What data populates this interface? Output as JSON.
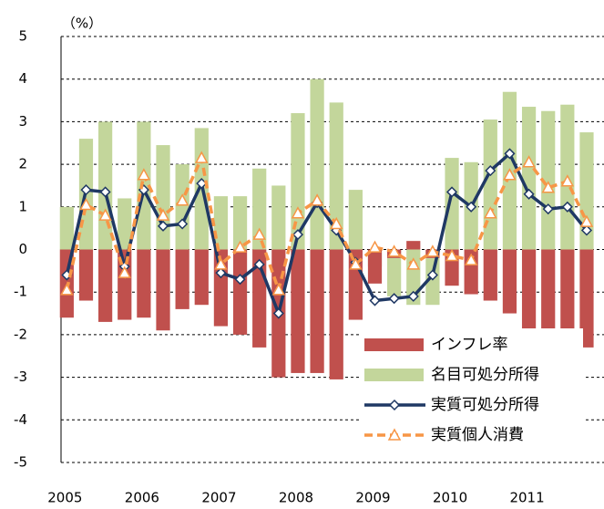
{
  "chart_data": {
    "type": "bar",
    "y_label": "（%）",
    "categories": [
      "2005",
      null,
      null,
      null,
      "2006",
      null,
      null,
      null,
      "2007",
      null,
      null,
      null,
      "2008",
      null,
      null,
      null,
      "2009",
      null,
      null,
      null,
      "2010",
      null,
      null,
      null,
      "2011",
      null,
      null,
      null
    ],
    "series": [
      {
        "name": "名目可処分所得",
        "type": "bar",
        "color": "#c3d69b",
        "values": [
          1.0,
          2.6,
          3.0,
          1.2,
          3.0,
          2.45,
          2.0,
          2.85,
          1.25,
          1.25,
          1.9,
          1.5,
          3.2,
          4.0,
          3.45,
          1.4,
          -0.4,
          -1.1,
          -1.3,
          -1.3,
          2.15,
          2.05,
          3.05,
          3.7,
          3.35,
          3.25,
          3.4,
          2.75
        ]
      },
      {
        "name": "インフレ率",
        "type": "bar",
        "color": "#c0504d",
        "values": [
          -1.6,
          -1.2,
          -1.7,
          -1.65,
          -1.6,
          -1.9,
          -1.4,
          -1.3,
          -1.8,
          -2.0,
          -2.3,
          -3.0,
          -2.9,
          -2.9,
          -3.05,
          -1.65,
          -0.8,
          -0.2,
          0.2,
          -0.2,
          -0.85,
          -1.05,
          -1.2,
          -1.5,
          -2.1,
          -2.35,
          -2.45,
          -2.3
        ]
      },
      {
        "name": "実質可処分所得",
        "type": "line",
        "marker": "diamond",
        "dashed": false,
        "color": "#1f3864",
        "values": [
          -0.6,
          1.4,
          1.35,
          -0.4,
          1.4,
          0.55,
          0.6,
          1.55,
          -0.55,
          -0.7,
          -0.35,
          -1.5,
          0.35,
          1.1,
          0.45,
          -0.3,
          -1.2,
          -1.15,
          -1.1,
          -0.6,
          1.35,
          1.0,
          1.85,
          2.25,
          1.3,
          0.95,
          1.0,
          0.45
        ]
      },
      {
        "name": "実質個人消費",
        "type": "line",
        "marker": "triangle",
        "dashed": true,
        "color": "#f79646",
        "values": [
          -0.95,
          1.05,
          0.8,
          -0.55,
          1.75,
          0.8,
          1.15,
          2.15,
          -0.35,
          0.05,
          0.35,
          -0.95,
          0.85,
          1.15,
          0.6,
          -0.35,
          0.05,
          -0.05,
          -0.35,
          -0.05,
          -0.15,
          -0.25,
          0.85,
          1.75,
          2.05,
          1.45,
          1.6,
          0.65
        ]
      }
    ],
    "ylim": [
      -5,
      5
    ],
    "yticks": [
      -5,
      -4,
      -3,
      -2,
      -1,
      0,
      1,
      2,
      3,
      4,
      5
    ],
    "grid": true,
    "legend": "lower right"
  }
}
